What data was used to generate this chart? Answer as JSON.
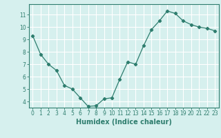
{
  "x": [
    0,
    1,
    2,
    3,
    4,
    5,
    6,
    7,
    8,
    9,
    10,
    11,
    12,
    13,
    14,
    15,
    16,
    17,
    18,
    19,
    20,
    21,
    22,
    23
  ],
  "y": [
    9.3,
    7.8,
    7.0,
    6.5,
    5.3,
    5.0,
    4.3,
    3.6,
    3.65,
    4.2,
    4.3,
    5.8,
    7.2,
    7.0,
    8.5,
    9.8,
    10.5,
    11.3,
    11.1,
    10.5,
    10.2,
    10.0,
    9.9,
    9.7
  ],
  "line_color": "#2e7d6e",
  "marker": "D",
  "marker_size": 2.2,
  "bg_color": "#d6f0ee",
  "grid_color": "#ffffff",
  "xlabel": "Humidex (Indice chaleur)",
  "ylim": [
    3.5,
    11.85
  ],
  "xlim": [
    -0.5,
    23.5
  ],
  "yticks": [
    4,
    5,
    6,
    7,
    8,
    9,
    10,
    11
  ],
  "xticks": [
    0,
    1,
    2,
    3,
    4,
    5,
    6,
    7,
    8,
    9,
    10,
    11,
    12,
    13,
    14,
    15,
    16,
    17,
    18,
    19,
    20,
    21,
    22,
    23
  ],
  "tick_label_fontsize": 5.5,
  "xlabel_fontsize": 7.0
}
